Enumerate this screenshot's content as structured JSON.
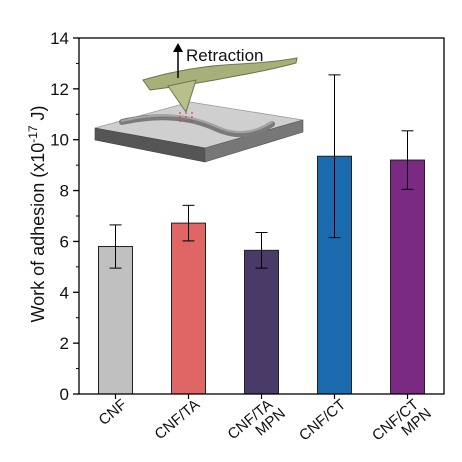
{
  "chart_data": {
    "type": "bar",
    "categories": [
      [
        "CNF"
      ],
      [
        "CNF/TA"
      ],
      [
        "CNF/TA",
        "MPN"
      ],
      [
        "CNF/CT"
      ],
      [
        "CNF/CT",
        "MPN"
      ]
    ],
    "values": [
      5.8,
      6.72,
      5.65,
      9.35,
      9.2
    ],
    "error": [
      0.85,
      0.7,
      0.7,
      3.2,
      1.15
    ],
    "colors": [
      "#c0c0c0",
      "#e06666",
      "#4a3a68",
      "#1a6aad",
      "#7a2a82"
    ],
    "ylabel": "Work of adhesion (x10",
    "ylabel_sup": "-17",
    "ylabel_unit": " J)",
    "ylim": [
      0,
      14
    ],
    "yticks": [
      0,
      2,
      4,
      6,
      8,
      10,
      12,
      14
    ],
    "inset": {
      "label": "Retraction"
    }
  }
}
